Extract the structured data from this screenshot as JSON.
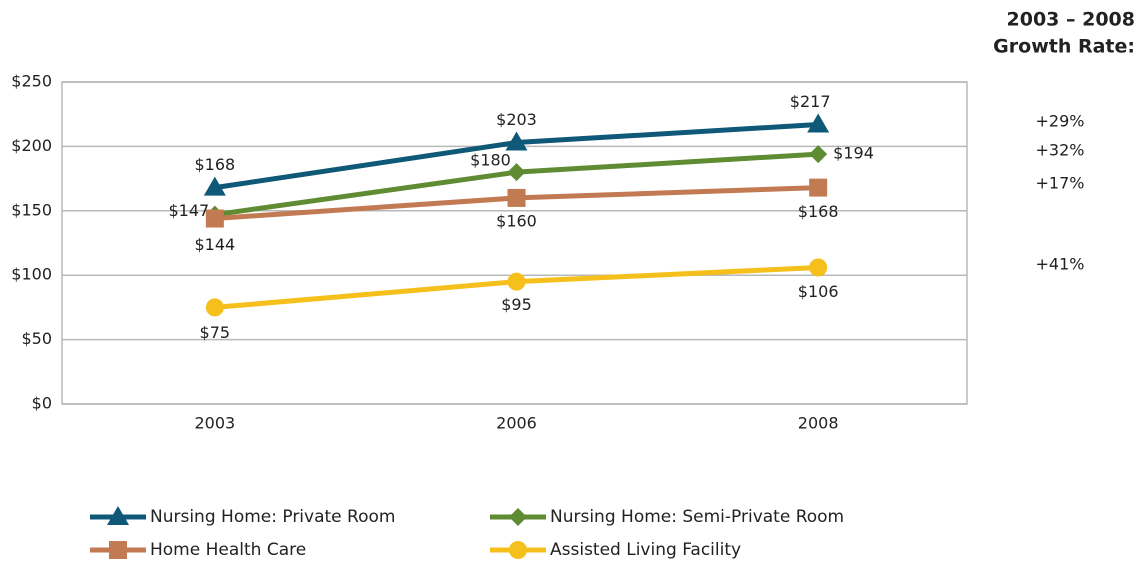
{
  "chart_data": {
    "type": "line",
    "categories": [
      "2003",
      "2006",
      "2008"
    ],
    "ylim": [
      0,
      250
    ],
    "yticks": [
      {
        "value": 0,
        "label": "$0"
      },
      {
        "value": 50,
        "label": "$50"
      },
      {
        "value": 100,
        "label": "$100"
      },
      {
        "value": 150,
        "label": "$150"
      },
      {
        "value": 200,
        "label": "$200"
      },
      {
        "value": 250,
        "label": "$250"
      }
    ],
    "grid": true,
    "series": [
      {
        "name": "Nursing Home: Private Room",
        "color": "#0f5878",
        "marker": "triangle",
        "values": [
          168,
          203,
          217
        ],
        "value_labels": [
          "$168",
          "$203",
          "$217"
        ]
      },
      {
        "name": "Nursing Home: Semi-Private Room",
        "color": "#5f8b33",
        "marker": "diamond",
        "values": [
          147,
          180,
          194
        ],
        "value_labels": [
          "$147",
          "$180",
          "$194"
        ]
      },
      {
        "name": "Home Health Care",
        "color": "#c27a52",
        "marker": "square",
        "values": [
          144,
          160,
          168
        ],
        "value_labels": [
          "$144",
          "$160",
          "$168"
        ]
      },
      {
        "name": "Assisted Living Facility",
        "color": "#f6c01c",
        "marker": "circle",
        "values": [
          75,
          95,
          106
        ],
        "value_labels": [
          "$75",
          "$95",
          "$106"
        ]
      }
    ],
    "growth_title": [
      "2003 – 2008",
      "Growth Rate:"
    ],
    "growth_rates": [
      "+29%",
      "+32%",
      "+17%",
      "+41%"
    ]
  }
}
